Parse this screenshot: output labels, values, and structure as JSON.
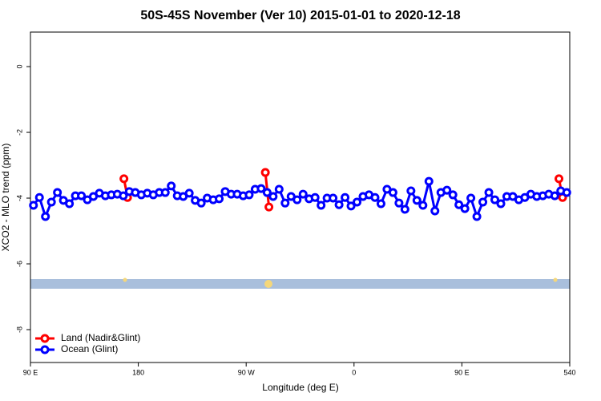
{
  "chart_data": {
    "type": "line",
    "title": "50S-45S November (Ver 10)   2015-01-01 to 2020-12-18",
    "xlabel": "Longitude (deg E)",
    "ylabel": "XCO2 - MLO trend (ppm)",
    "xlim": [
      90,
      540
    ],
    "ylim": [
      -9,
      1.05
    ],
    "xticks": [
      {
        "value": 90,
        "label": "90 E"
      },
      180,
      {
        "value": 270,
        "label": "90 W"
      },
      {
        "value": 360,
        "label": "0"
      },
      {
        "value": 450,
        "label": "90 E"
      },
      540
    ],
    "yticks": [
      0,
      -2,
      -4,
      -6,
      -8
    ],
    "legend": "bottom-left",
    "series": [
      {
        "name": "Land (Nadir&Glint)",
        "color": "#ff0000",
        "x": [
          168,
          171,
          null,
          286,
          289,
          null,
          531,
          534
        ],
        "values": [
          -3.41,
          -3.98,
          null,
          -3.22,
          -4.27,
          null,
          -3.41,
          -3.98
        ]
      },
      {
        "name": "Ocean (Glint)",
        "color": "#0000ff",
        "x": [
          92.5,
          97.5,
          102.5,
          107.5,
          112.5,
          117.5,
          122.5,
          127.5,
          132.5,
          137.5,
          142.5,
          147.5,
          152.5,
          157.5,
          162.5,
          167.5,
          172.5,
          177.5,
          182.5,
          187.5,
          192.5,
          197.5,
          202.5,
          207.5,
          212.5,
          217.5,
          222.5,
          227.5,
          232.5,
          237.5,
          242.5,
          247.5,
          252.5,
          257.5,
          262.5,
          267.5,
          272.5,
          277.5,
          282.5,
          287.5,
          292.5,
          297.5,
          302.5,
          307.5,
          312.5,
          317.5,
          322.5,
          327.5,
          332.5,
          337.5,
          342.5,
          347.5,
          352.5,
          357.5,
          362.5,
          367.5,
          372.5,
          377.5,
          382.5,
          387.5,
          392.5,
          397.5,
          402.5,
          407.5,
          412.5,
          417.5,
          422.5,
          427.5,
          432.5,
          437.5,
          442.5,
          447.5,
          452.5,
          457.5,
          462.5,
          467.5,
          472.5,
          477.5,
          482.5,
          487.5,
          492.5,
          497.5,
          502.5,
          507.5,
          512.5,
          517.5,
          522.5,
          527.5,
          532.5,
          537.5
        ],
        "values": [
          -4.22,
          -3.98,
          -4.56,
          -4.12,
          -3.83,
          -4.07,
          -4.17,
          -3.93,
          -3.93,
          -4.05,
          -3.95,
          -3.85,
          -3.93,
          -3.9,
          -3.88,
          -3.93,
          -3.8,
          -3.83,
          -3.9,
          -3.85,
          -3.9,
          -3.83,
          -3.83,
          -3.63,
          -3.93,
          -3.95,
          -3.85,
          -4.07,
          -4.15,
          -4.0,
          -4.05,
          -4.02,
          -3.8,
          -3.88,
          -3.88,
          -3.93,
          -3.9,
          -3.73,
          -3.71,
          -3.83,
          -3.95,
          -3.73,
          -4.15,
          -3.95,
          -4.05,
          -3.88,
          -4.02,
          -3.98,
          -4.22,
          -4.0,
          -4.0,
          -4.2,
          -3.98,
          -4.24,
          -4.12,
          -3.95,
          -3.9,
          -3.98,
          -4.17,
          -3.73,
          -3.83,
          -4.15,
          -4.34,
          -3.78,
          -4.07,
          -4.22,
          -3.49,
          -4.39,
          -3.83,
          -3.76,
          -3.9,
          -4.2,
          -4.32,
          -4.0,
          -4.56,
          -4.12,
          -3.83,
          -4.05,
          -4.17,
          -3.95,
          -3.95,
          -4.05,
          -3.98,
          -3.88,
          -3.95,
          -3.93,
          -3.88,
          -3.93,
          -3.78,
          -3.83
        ]
      }
    ]
  }
}
